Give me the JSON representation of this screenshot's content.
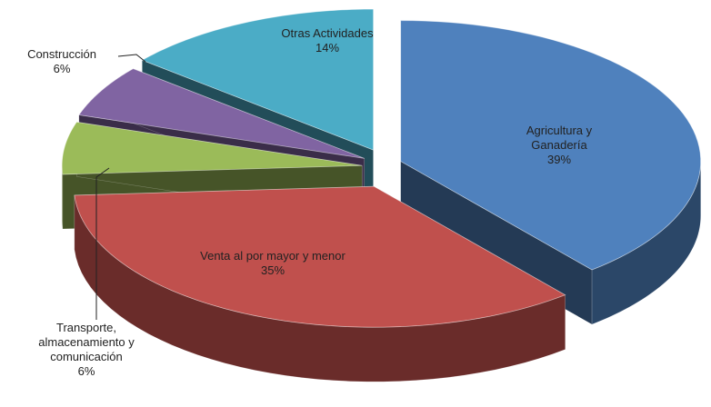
{
  "chart_data": {
    "type": "pie",
    "three_d": true,
    "exploded": true,
    "categories": [
      "Agricultura y Ganadería",
      "Venta al por mayor y menor",
      "Transporte, almacenamiento y comunicación",
      "Construcción",
      "Otras Actividades"
    ],
    "values": [
      39,
      35,
      6,
      6,
      14
    ],
    "value_labels": [
      "39%",
      "35%",
      "6%",
      "6%",
      "14%"
    ],
    "colors": [
      "#4f81bd",
      "#c0504d",
      "#9bbb59",
      "#8064a2",
      "#4bacc6"
    ]
  }
}
